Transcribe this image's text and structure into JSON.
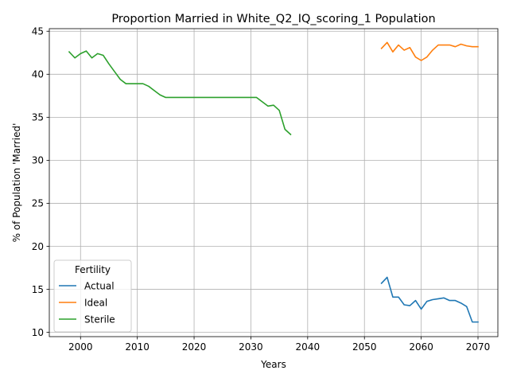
{
  "chart_data": {
    "type": "line",
    "title": "Proportion Married in White_Q2_IQ_scoring_1 Population",
    "xlabel": "Years",
    "ylabel": "% of Population 'Married'",
    "xlim": [
      1994.5,
      2073.5
    ],
    "ylim": [
      9.5,
      45.3
    ],
    "xticks": [
      2000,
      2010,
      2020,
      2030,
      2040,
      2050,
      2060,
      2070
    ],
    "yticks": [
      10,
      15,
      20,
      25,
      30,
      35,
      40,
      45
    ],
    "grid": true,
    "legend": {
      "title": "Fertility",
      "placement": "lower-left"
    },
    "series": [
      {
        "name": "Actual",
        "color": "#1f77b4",
        "x": [
          2053,
          2054,
          2055,
          2056,
          2057,
          2058,
          2059,
          2060,
          2061,
          2062,
          2063,
          2064,
          2065,
          2066,
          2067,
          2068,
          2069,
          2070
        ],
        "y": [
          15.7,
          16.4,
          14.1,
          14.1,
          13.2,
          13.1,
          13.7,
          12.7,
          13.6,
          13.8,
          13.9,
          14.0,
          13.7,
          13.7,
          13.4,
          13.0,
          11.2,
          11.2
        ]
      },
      {
        "name": "Ideal",
        "color": "#ff7f0e",
        "x": [
          2053,
          2054,
          2055,
          2056,
          2057,
          2058,
          2059,
          2060,
          2061,
          2062,
          2063,
          2064,
          2065,
          2066,
          2067,
          2068,
          2069,
          2070
        ],
        "y": [
          43.0,
          43.7,
          42.6,
          43.4,
          42.8,
          43.1,
          42.0,
          41.6,
          42.0,
          42.8,
          43.4,
          43.4,
          43.4,
          43.2,
          43.5,
          43.3,
          43.2,
          43.2
        ]
      },
      {
        "name": "Sterile",
        "color": "#2ca02c",
        "x": [
          1998,
          1999,
          2000,
          2001,
          2002,
          2003,
          2004,
          2005,
          2006,
          2007,
          2008,
          2009,
          2010,
          2011,
          2012,
          2013,
          2014,
          2015,
          2016,
          2017,
          2018,
          2019,
          2020,
          2021,
          2022,
          2023,
          2024,
          2025,
          2026,
          2027,
          2028,
          2029,
          2030,
          2031,
          2032,
          2033,
          2034,
          2035,
          2036,
          2037
        ],
        "y": [
          42.6,
          41.9,
          42.4,
          42.7,
          41.9,
          42.4,
          42.2,
          41.2,
          40.3,
          39.4,
          38.9,
          38.9,
          38.9,
          38.9,
          38.6,
          38.1,
          37.6,
          37.3,
          37.3,
          37.3,
          37.3,
          37.3,
          37.3,
          37.3,
          37.3,
          37.3,
          37.3,
          37.3,
          37.3,
          37.3,
          37.3,
          37.3,
          37.3,
          37.3,
          36.8,
          36.3,
          36.4,
          35.8,
          33.6,
          33.0
        ]
      }
    ]
  }
}
